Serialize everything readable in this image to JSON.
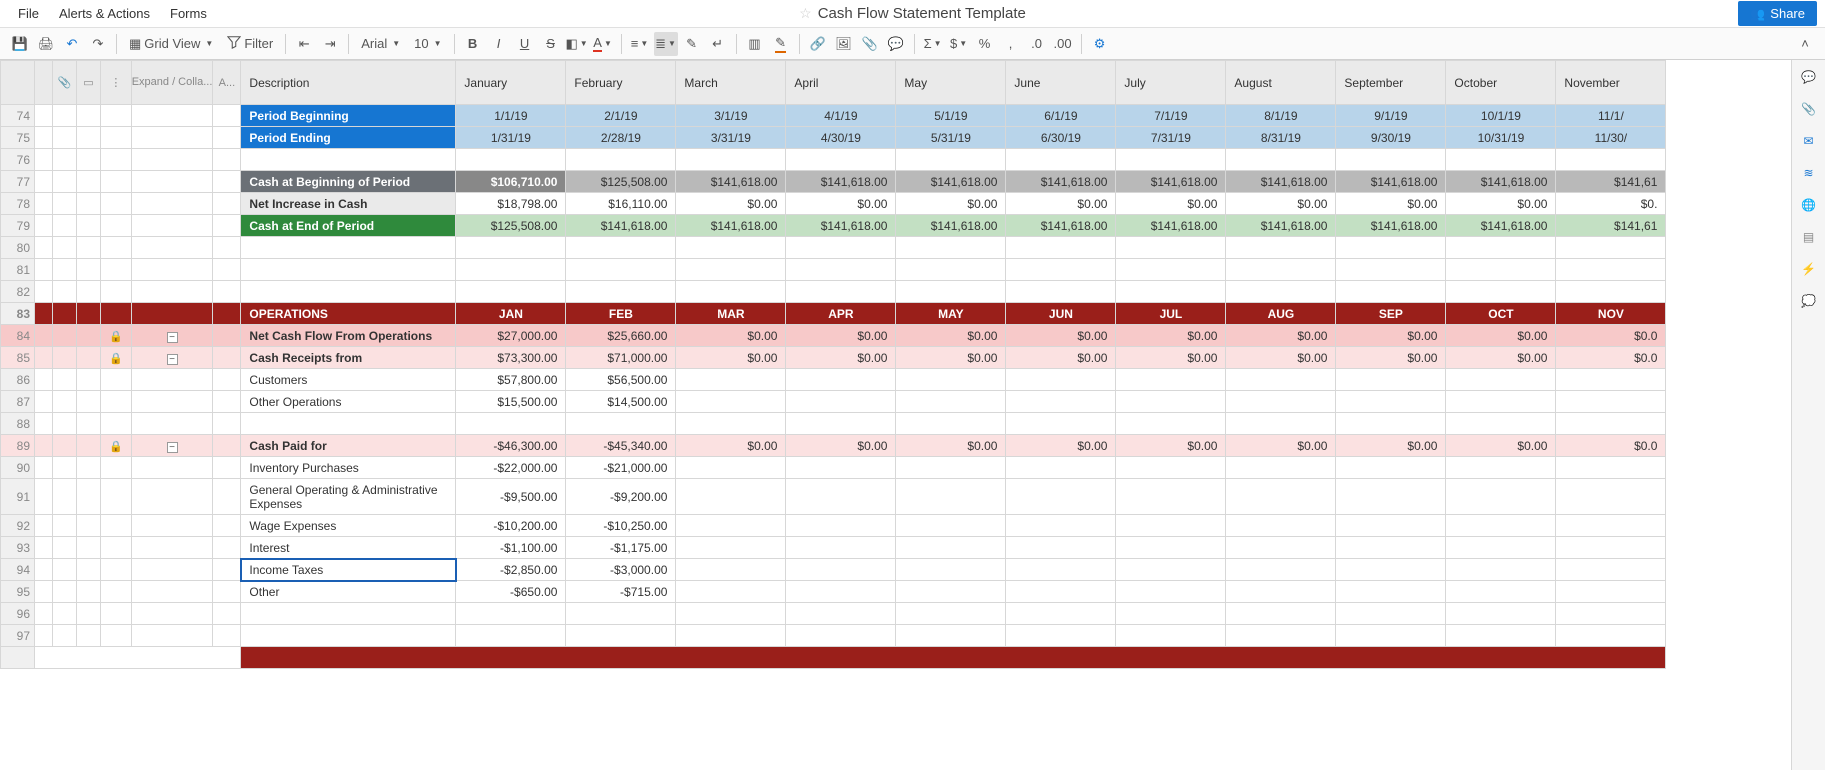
{
  "app": {
    "title": "Cash Flow Statement Template",
    "menus": [
      "File",
      "Alerts & Actions",
      "Forms"
    ],
    "share_label": "Share"
  },
  "toolbar": {
    "grid_view_label": "Grid View",
    "filter_label": "Filter",
    "font_name": "Arial",
    "font_size": "10"
  },
  "columns": {
    "expand_label": "Expand / Colla...",
    "a_label": "A...",
    "description_label": "Description",
    "months": [
      "January",
      "February",
      "March",
      "April",
      "May",
      "June",
      "July",
      "August",
      "September",
      "October",
      "November"
    ],
    "month_codes": [
      "JAN",
      "FEB",
      "MAR",
      "APR",
      "MAY",
      "JUN",
      "JUL",
      "AUG",
      "SEP",
      "OCT",
      "NOV"
    ]
  },
  "row_numbers": [
    74,
    75,
    76,
    77,
    78,
    79,
    80,
    81,
    82,
    83,
    84,
    85,
    86,
    87,
    88,
    89,
    90,
    91,
    92,
    93,
    94,
    95,
    96,
    97
  ],
  "rows": {
    "period_beginning": {
      "label": "Period Beginning",
      "values": [
        "1/1/19",
        "2/1/19",
        "3/1/19",
        "4/1/19",
        "5/1/19",
        "6/1/19",
        "7/1/19",
        "8/1/19",
        "9/1/19",
        "10/1/19",
        "11/1/"
      ]
    },
    "period_ending": {
      "label": "Period Ending",
      "values": [
        "1/31/19",
        "2/28/19",
        "3/31/19",
        "4/30/19",
        "5/31/19",
        "6/30/19",
        "7/31/19",
        "8/31/19",
        "9/30/19",
        "10/31/19",
        "11/30/"
      ]
    },
    "cash_begin": {
      "label": "Cash at Beginning of Period",
      "values": [
        "$106,710.00",
        "$125,508.00",
        "$141,618.00",
        "$141,618.00",
        "$141,618.00",
        "$141,618.00",
        "$141,618.00",
        "$141,618.00",
        "$141,618.00",
        "$141,618.00",
        "$141,61"
      ]
    },
    "net_increase": {
      "label": "Net Increase in Cash",
      "values": [
        "$18,798.00",
        "$16,110.00",
        "$0.00",
        "$0.00",
        "$0.00",
        "$0.00",
        "$0.00",
        "$0.00",
        "$0.00",
        "$0.00",
        "$0."
      ]
    },
    "cash_end": {
      "label": "Cash at End of Period",
      "values": [
        "$125,508.00",
        "$141,618.00",
        "$141,618.00",
        "$141,618.00",
        "$141,618.00",
        "$141,618.00",
        "$141,618.00",
        "$141,618.00",
        "$141,618.00",
        "$141,618.00",
        "$141,61"
      ]
    },
    "operations_section": {
      "label": "OPERATIONS"
    },
    "net_cash_ops": {
      "label": "Net Cash Flow From Operations",
      "values": [
        "$27,000.00",
        "$25,660.00",
        "$0.00",
        "$0.00",
        "$0.00",
        "$0.00",
        "$0.00",
        "$0.00",
        "$0.00",
        "$0.00",
        "$0.0"
      ]
    },
    "cash_receipts": {
      "label": "Cash Receipts from",
      "values": [
        "$73,300.00",
        "$71,000.00",
        "$0.00",
        "$0.00",
        "$0.00",
        "$0.00",
        "$0.00",
        "$0.00",
        "$0.00",
        "$0.00",
        "$0.0"
      ]
    },
    "customers": {
      "label": "Customers",
      "values": [
        "$57,800.00",
        "$56,500.00",
        "",
        "",
        "",
        "",
        "",
        "",
        "",
        "",
        ""
      ]
    },
    "other_ops": {
      "label": "Other Operations",
      "values": [
        "$15,500.00",
        "$14,500.00",
        "",
        "",
        "",
        "",
        "",
        "",
        "",
        "",
        ""
      ]
    },
    "cash_paid": {
      "label": "Cash Paid for",
      "values": [
        "-$46,300.00",
        "-$45,340.00",
        "$0.00",
        "$0.00",
        "$0.00",
        "$0.00",
        "$0.00",
        "$0.00",
        "$0.00",
        "$0.00",
        "$0.0"
      ]
    },
    "inventory": {
      "label": "Inventory Purchases",
      "values": [
        "-$22,000.00",
        "-$21,000.00",
        "",
        "",
        "",
        "",
        "",
        "",
        "",
        "",
        ""
      ]
    },
    "gen_admin": {
      "label": "General Operating & Administrative Expenses",
      "values": [
        "-$9,500.00",
        "-$9,200.00",
        "",
        "",
        "",
        "",
        "",
        "",
        "",
        "",
        ""
      ]
    },
    "wage": {
      "label": "Wage Expenses",
      "values": [
        "-$10,200.00",
        "-$10,250.00",
        "",
        "",
        "",
        "",
        "",
        "",
        "",
        "",
        ""
      ]
    },
    "interest": {
      "label": "Interest",
      "values": [
        "-$1,100.00",
        "-$1,175.00",
        "",
        "",
        "",
        "",
        "",
        "",
        "",
        "",
        ""
      ]
    },
    "income_tax": {
      "label": "Income Taxes",
      "values": [
        "-$2,850.00",
        "-$3,000.00",
        "",
        "",
        "",
        "",
        "",
        "",
        "",
        "",
        ""
      ]
    },
    "other": {
      "label": "Other",
      "values": [
        "-$650.00",
        "-$715.00",
        "",
        "",
        "",
        "",
        "",
        "",
        "",
        "",
        ""
      ]
    }
  },
  "colors": {
    "blue_header_bg": "#1676d2",
    "blue_cell_bg": "#b8d4ea",
    "gray_header_bg": "#6b7076",
    "gray_cell_bg": "#b9b9b9",
    "gray_dark_cell": "#888888",
    "white_header_bg": "#eaeaea",
    "green_header_bg": "#2f8a3c",
    "green_cell_bg": "#c3e0c3",
    "section_bg": "#9a1f1a",
    "pink_bg": "#fbe1e1",
    "pink_bold_bg": "#f7c9c9"
  }
}
